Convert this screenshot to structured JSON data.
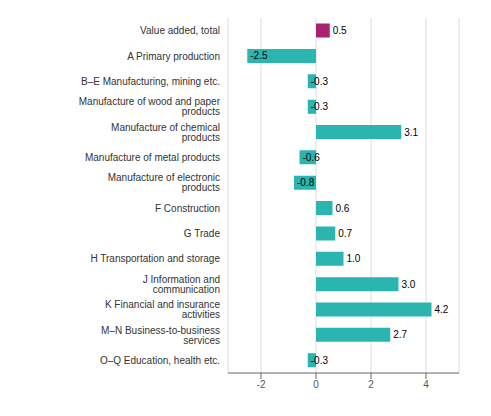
{
  "chart_data": {
    "type": "bar",
    "orientation": "horizontal",
    "categories": [
      "Value added, total",
      "A Primary production",
      "B–E Manufacturing, mining etc.",
      "Manufacture of wood and paper products",
      "Manufacture of chemical products",
      "Manufacture of metal products",
      "Manufacture of electronic products",
      "F Construction",
      "G Trade",
      "H Transportation and storage",
      "J Information and communication",
      "K Financial and insurance activities",
      "M–N Business-to-business services",
      "O–Q Education, health etc."
    ],
    "values": [
      0.5,
      -2.5,
      -0.3,
      -0.3,
      3.1,
      -0.6,
      -0.8,
      0.6,
      0.7,
      1.0,
      3.0,
      4.2,
      2.7,
      -0.3
    ],
    "value_labels": [
      "0.5",
      "-2.5",
      "-0.3",
      "-0.3",
      "3.1",
      "-0.6",
      "-0.8",
      "0.6",
      "0.7",
      "1.0",
      "3.0",
      "4.2",
      "2.7",
      "-0.3"
    ],
    "colors": [
      "#aa2070",
      "#2ab5b0",
      "#2ab5b0",
      "#2ab5b0",
      "#2ab5b0",
      "#2ab5b0",
      "#2ab5b0",
      "#2ab5b0",
      "#2ab5b0",
      "#2ab5b0",
      "#2ab5b0",
      "#2ab5b0",
      "#2ab5b0",
      "#2ab5b0"
    ],
    "xlim": [
      -3.2,
      5.2
    ],
    "xticks": [
      -2,
      0,
      2,
      4
    ],
    "grid": true,
    "data_labels": true
  }
}
